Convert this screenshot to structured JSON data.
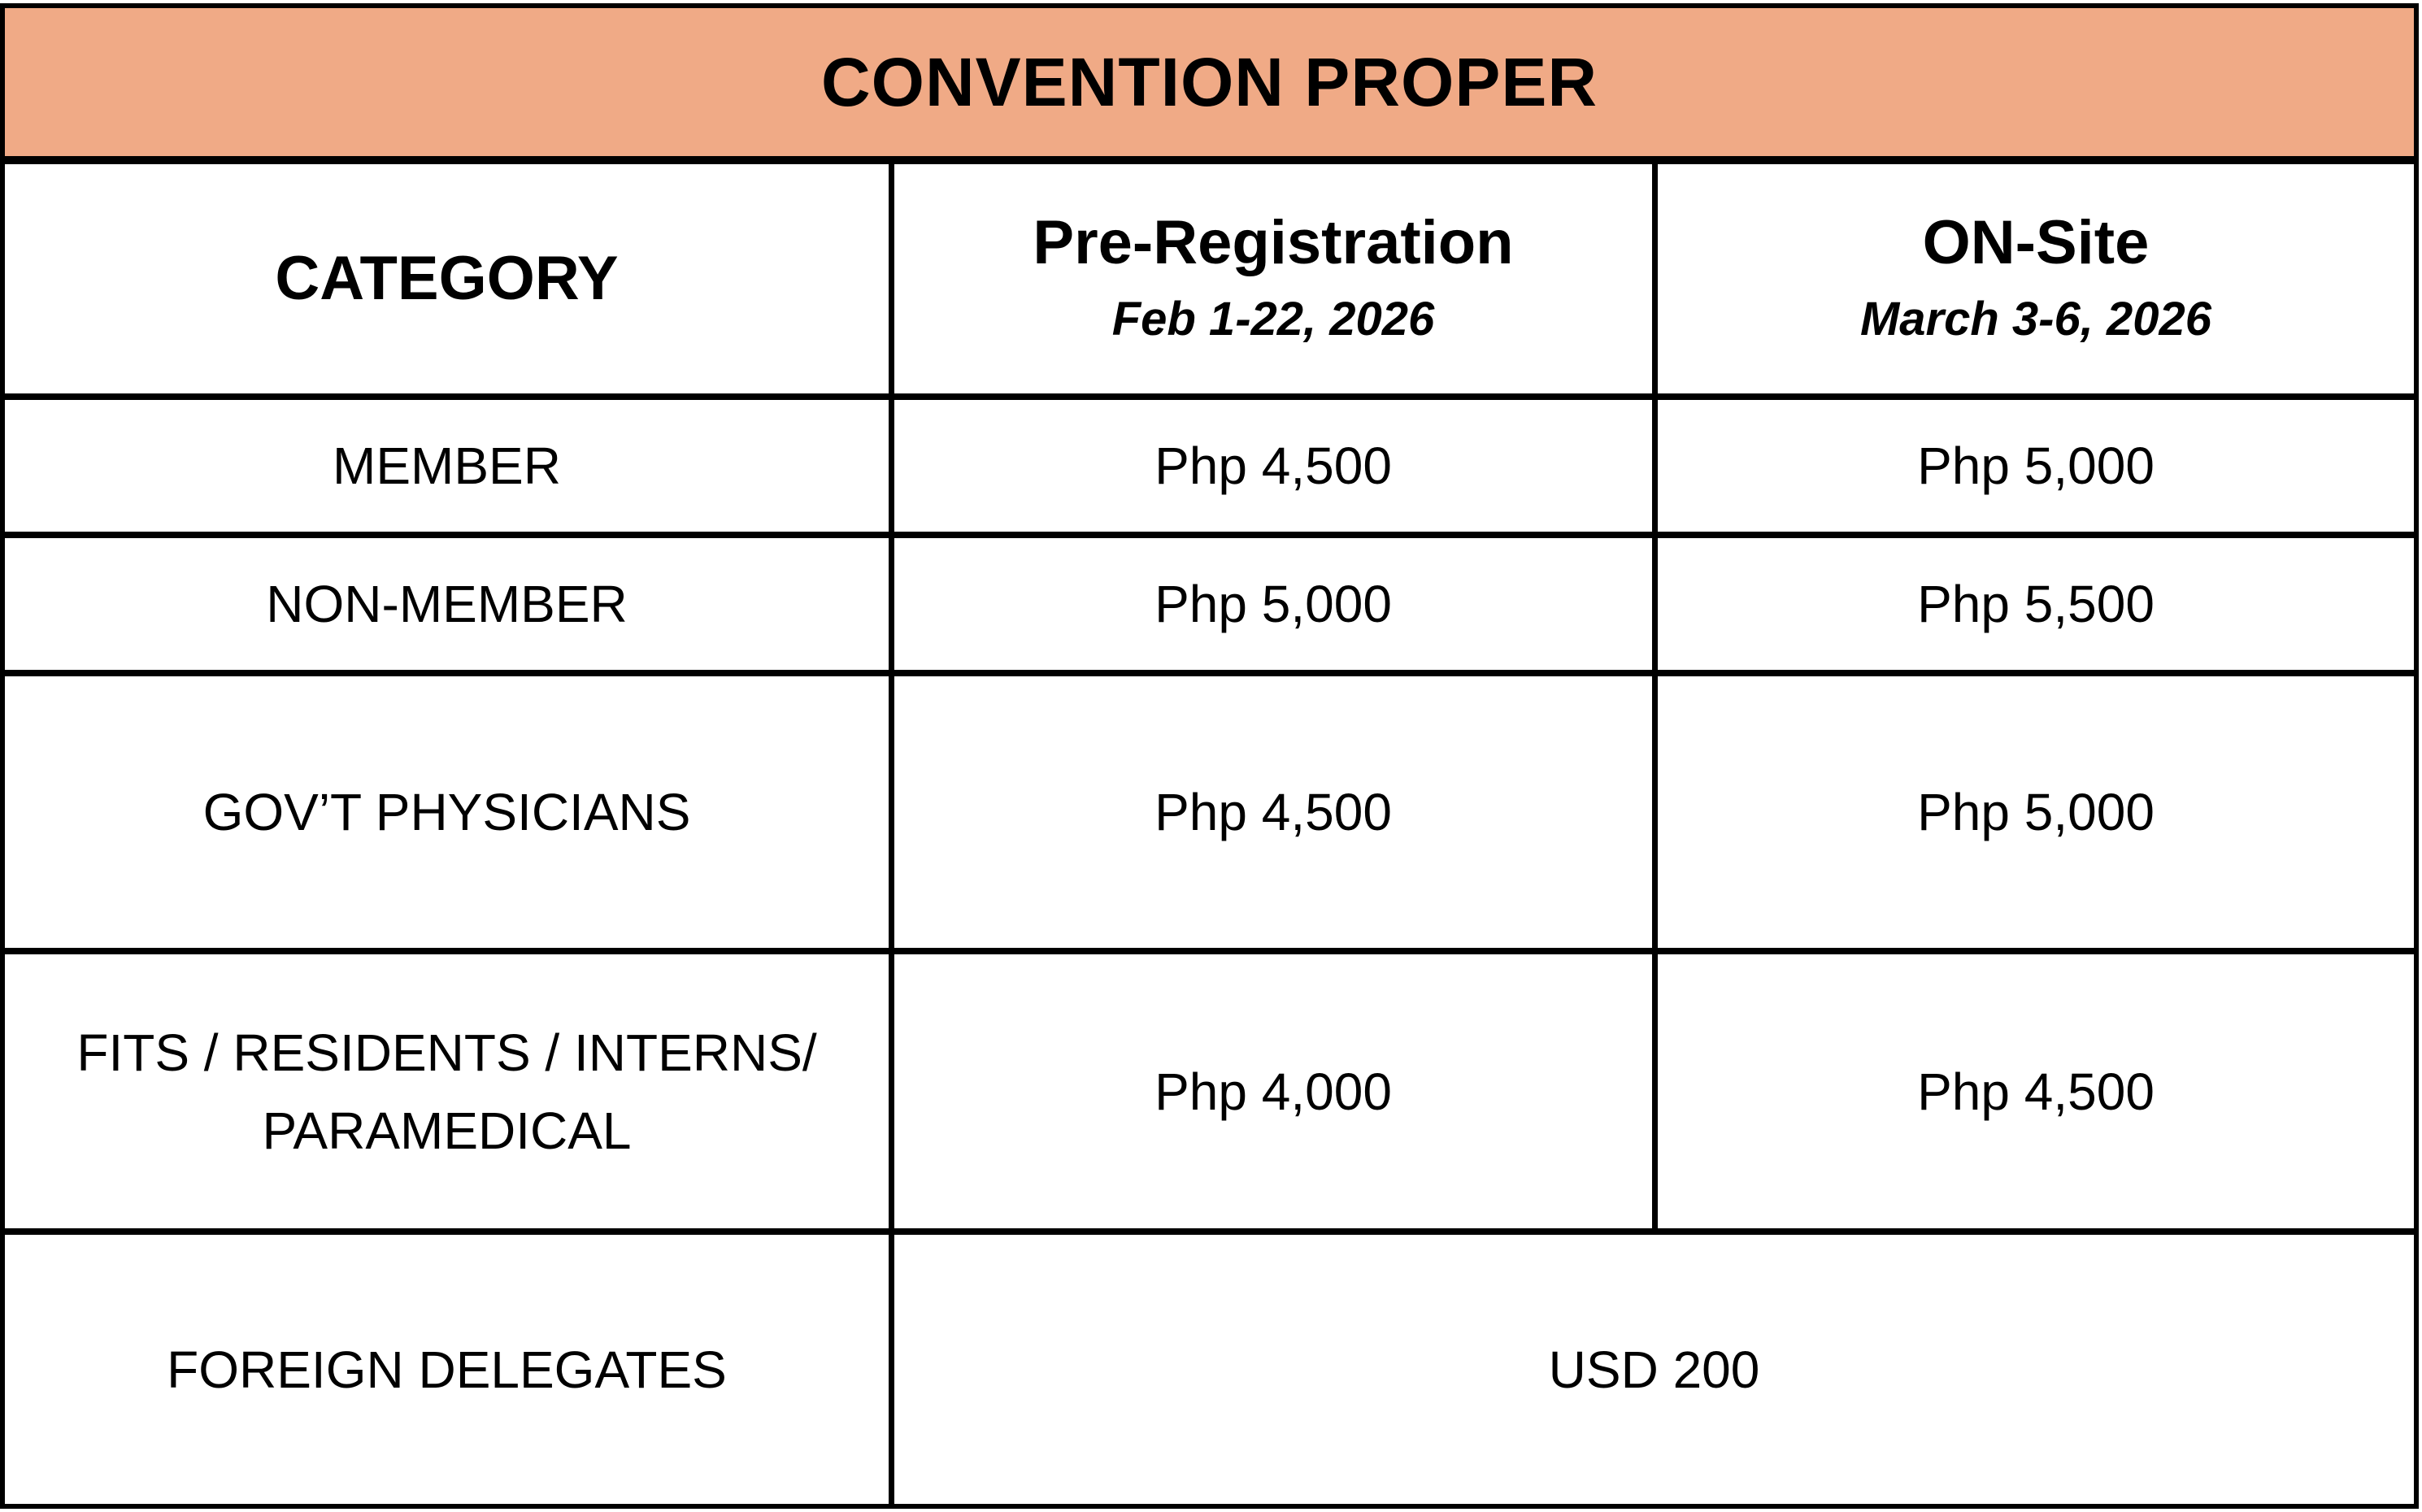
{
  "title": "CONVENTION PROPER",
  "colors": {
    "header_bg": "#F0AA86",
    "border": "#000000"
  },
  "header": {
    "category": "CATEGORY",
    "pre_registration": {
      "label": "Pre-Registration",
      "dates": "Feb 1-22, 2026"
    },
    "on_site": {
      "label": "ON-Site",
      "dates": "March 3-6, 2026"
    }
  },
  "rows": [
    {
      "category": "MEMBER",
      "pre": "Php 4,500",
      "onsite": "Php 5,000"
    },
    {
      "category": "NON-MEMBER",
      "pre": "Php 5,000",
      "onsite": "Php 5,500"
    },
    {
      "category": "GOV’T PHYSICIANS",
      "pre": "Php 4,500",
      "onsite": "Php 5,000"
    },
    {
      "category_line1": "FITS / RESIDENTS / INTERNS/",
      "category_line2": "PARAMEDICAL",
      "pre": "Php 4,000",
      "onsite": "Php 4,500"
    },
    {
      "category": "FOREIGN DELEGATES",
      "fee": "USD 200"
    }
  ]
}
